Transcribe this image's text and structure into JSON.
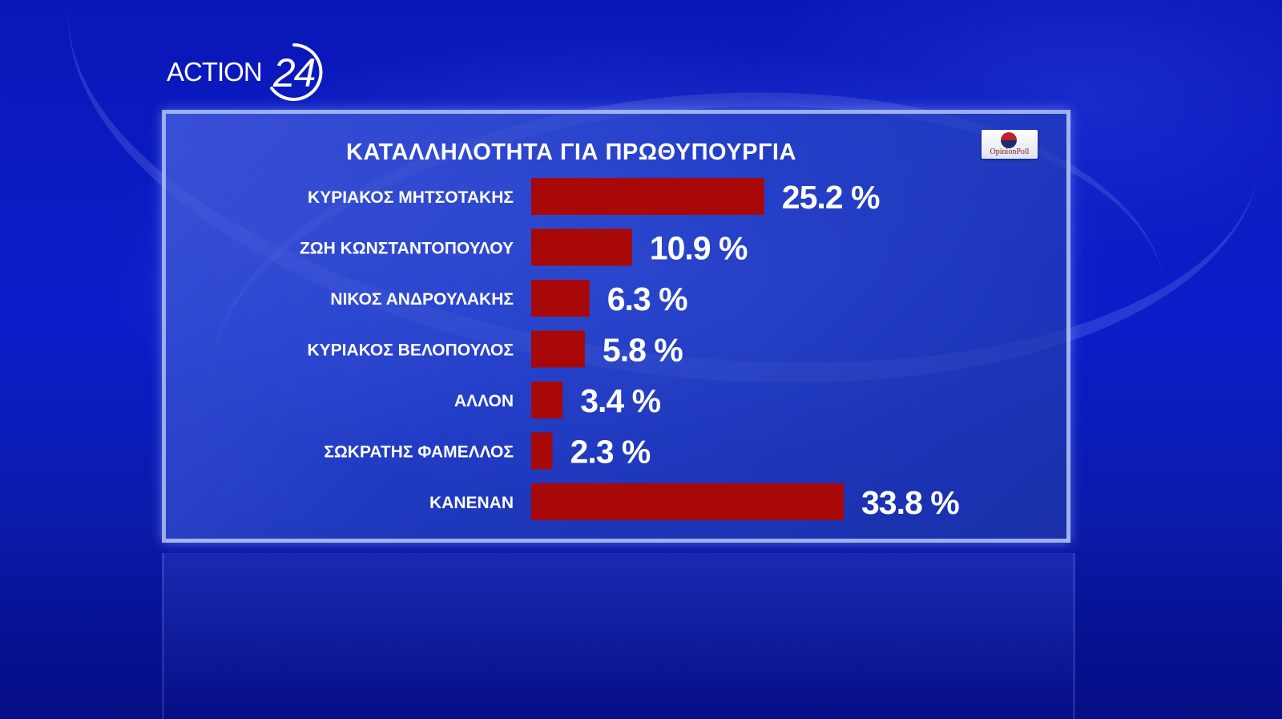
{
  "brand": {
    "channel_word": "ACTION",
    "channel_number": "24",
    "pollster": "OpinionPoll"
  },
  "colors": {
    "bar": "#a80808",
    "label": "#ffffff",
    "panel_border": "#c8d7ff"
  },
  "chart_data": {
    "type": "bar",
    "orientation": "horizontal",
    "title": "ΚΑΤΑΛΛΗΛΟΤΗΤΑ ΓΙΑ ΠΡΩΘΥΠΟΥΡΓΙΑ",
    "categories": [
      "ΚΥΡΙΑΚΟΣ ΜΗΤΣΟΤΑΚΗΣ",
      "ΖΩΗ ΚΩΝΣΤΑΝΤΟΠΟΥΛΟΥ",
      "ΝΙΚΟΣ ΑΝΔΡΟΥΛΑΚΗΣ",
      "ΚΥΡΙΑΚΟΣ ΒΕΛΟΠΟΥΛΟΣ",
      "ΑΛΛΟΝ",
      "ΣΩΚΡΑΤΗΣ ΦΑΜΕΛΛΟΣ",
      "ΚΑΝΕΝΑΝ"
    ],
    "values": [
      25.2,
      10.9,
      6.3,
      5.8,
      3.4,
      2.3,
      33.8
    ],
    "value_labels": [
      "25.2 %",
      "10.9 %",
      "6.3 %",
      "5.8 %",
      "3.4 %",
      "2.3 %",
      "33.8 %"
    ],
    "unit": "%",
    "xlim": [
      0,
      33.8
    ],
    "grid": false,
    "legend": "none"
  }
}
